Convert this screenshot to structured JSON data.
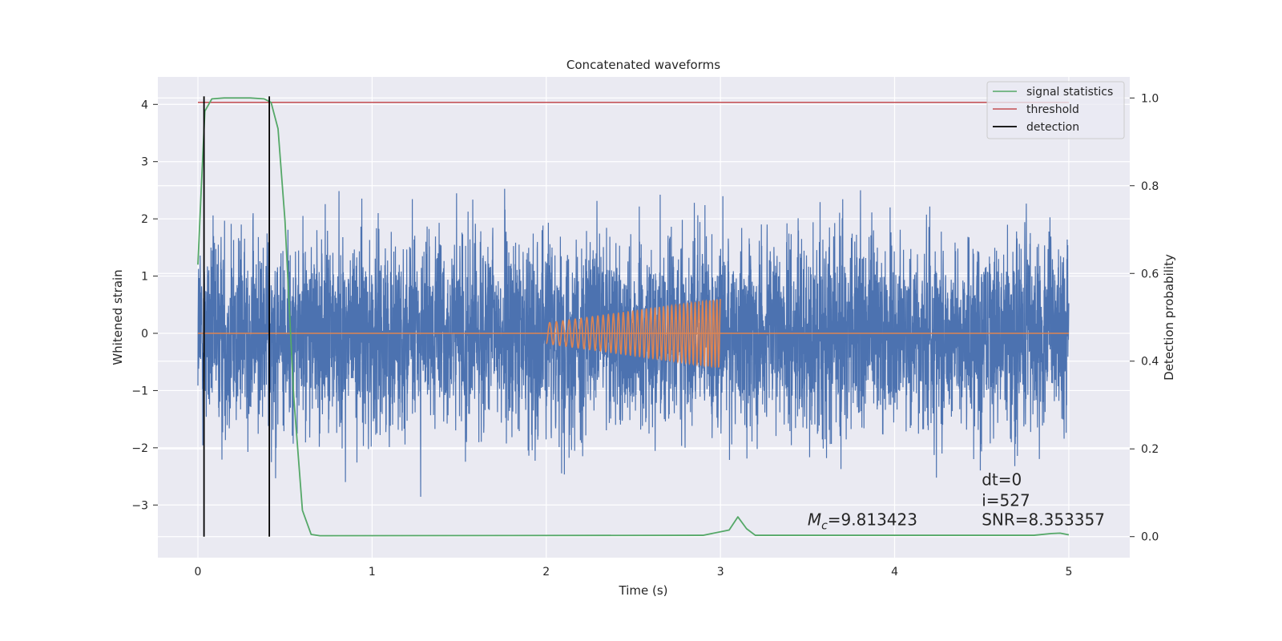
{
  "chart_data": {
    "type": "line",
    "title": "Concatenated waveforms",
    "xlabel": "Time (s)",
    "ylabel": "Whitened strain",
    "ylabel_right": "Detection probability",
    "xlim": [
      -0.23,
      5.35
    ],
    "ylim": [
      -3.92,
      4.48
    ],
    "ylim_right": [
      -0.048,
      1.048
    ],
    "xticks": [
      0,
      1,
      2,
      3,
      4,
      5
    ],
    "yticks": [
      -3,
      -2,
      -1,
      0,
      1,
      2,
      3,
      4
    ],
    "yticks_right": [
      0.0,
      0.2,
      0.4,
      0.6,
      0.8,
      1.0
    ],
    "yticks_right_labels": [
      "0.0",
      "0.2",
      "0.4",
      "0.6",
      "0.8",
      "1.0"
    ],
    "grid": true,
    "legend_position": "top-right",
    "series": [
      {
        "name": "",
        "axis": "left",
        "color": "#4c72b0",
        "kind": "noise",
        "x_range": [
          0,
          5
        ],
        "std": 0.85
      },
      {
        "name": "",
        "axis": "left",
        "color": "#dd8452",
        "kind": "chirp",
        "x_range": [
          2,
          3
        ],
        "amplitude": [
          0.18,
          0.6
        ],
        "baseline_range": [
          0,
          5
        ]
      },
      {
        "name": "signal statistics",
        "axis": "right",
        "color": "#55a868",
        "x": [
          0,
          0.02,
          0.04,
          0.08,
          0.15,
          0.3,
          0.38,
          0.42,
          0.46,
          0.5,
          0.55,
          0.6,
          0.65,
          0.7,
          2.9,
          3.05,
          3.1,
          3.15,
          3.2,
          4.8,
          4.9,
          4.95,
          5.0
        ],
        "y": [
          0.62,
          0.8,
          0.97,
          0.998,
          1.0,
          1.0,
          0.998,
          0.99,
          0.93,
          0.72,
          0.32,
          0.06,
          0.005,
          0.002,
          0.003,
          0.015,
          0.045,
          0.018,
          0.003,
          0.003,
          0.007,
          0.008,
          0.004
        ]
      },
      {
        "name": "threshold",
        "axis": "right",
        "color": "#c44e52",
        "x": [
          0,
          5
        ],
        "y": [
          0.99,
          0.99
        ]
      },
      {
        "name": "detection",
        "axis": "right",
        "color": "#000000",
        "vlines": [
          0.035,
          0.41
        ],
        "y_range": [
          0,
          1.0
        ]
      }
    ],
    "annotations": [
      {
        "text": "Mc=9.813423",
        "x": 3.5,
        "y": -3.35
      },
      {
        "text": "dt=0",
        "x": 4.5,
        "y": -2.65
      },
      {
        "text": "i=527",
        "x": 4.5,
        "y": -3.02
      },
      {
        "text": "SNR=8.353357",
        "x": 4.5,
        "y": -3.35
      }
    ]
  }
}
